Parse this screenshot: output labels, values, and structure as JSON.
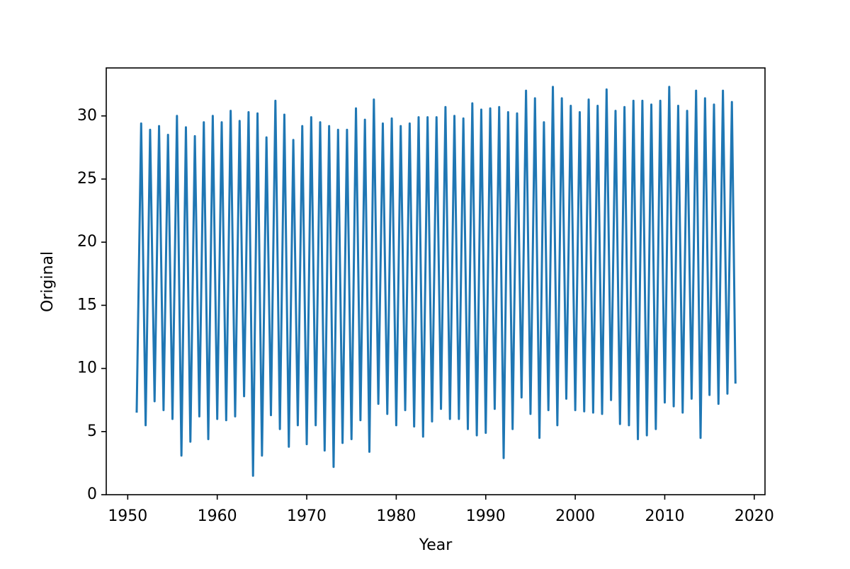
{
  "chart_data": {
    "type": "line",
    "xlabel": "Year",
    "ylabel": "Original",
    "xlim": [
      1947.6,
      2021.2
    ],
    "ylim": [
      0,
      33.8
    ],
    "xticks": [
      1950,
      1960,
      1970,
      1980,
      1990,
      2000,
      2010,
      2020
    ],
    "yticks": [
      0,
      5,
      10,
      15,
      20,
      25,
      30
    ],
    "grid": false,
    "series": [
      {
        "color": "#1f77b4",
        "x": [
          1951.0,
          1951.5,
          1952.0,
          1952.5,
          1953.0,
          1953.5,
          1954.0,
          1954.5,
          1955.0,
          1955.5,
          1956.0,
          1956.5,
          1957.0,
          1957.5,
          1958.0,
          1958.5,
          1959.0,
          1959.5,
          1960.0,
          1960.5,
          1961.0,
          1961.5,
          1962.0,
          1962.5,
          1963.0,
          1963.5,
          1964.0,
          1964.5,
          1965.0,
          1965.5,
          1966.0,
          1966.5,
          1967.0,
          1967.5,
          1968.0,
          1968.5,
          1969.0,
          1969.5,
          1970.0,
          1970.5,
          1971.0,
          1971.5,
          1972.0,
          1972.5,
          1973.0,
          1973.5,
          1974.0,
          1974.5,
          1975.0,
          1975.5,
          1976.0,
          1976.5,
          1977.0,
          1977.5,
          1978.0,
          1978.5,
          1979.0,
          1979.5,
          1980.0,
          1980.5,
          1981.0,
          1981.5,
          1982.0,
          1982.5,
          1983.0,
          1983.5,
          1984.0,
          1984.5,
          1985.0,
          1985.5,
          1986.0,
          1986.5,
          1987.0,
          1987.5,
          1988.0,
          1988.5,
          1989.0,
          1989.5,
          1990.0,
          1990.5,
          1991.0,
          1991.5,
          1992.0,
          1992.5,
          1993.0,
          1993.5,
          1994.0,
          1994.5,
          1995.0,
          1995.5,
          1996.0,
          1996.5,
          1997.0,
          1997.5,
          1998.0,
          1998.5,
          1999.0,
          1999.5,
          2000.0,
          2000.5,
          2001.0,
          2001.5,
          2002.0,
          2002.5,
          2003.0,
          2003.5,
          2004.0,
          2004.5,
          2005.0,
          2005.5,
          2006.0,
          2006.5,
          2007.0,
          2007.5,
          2008.0,
          2008.5,
          2009.0,
          2009.5,
          2010.0,
          2010.5,
          2011.0,
          2011.5,
          2012.0,
          2012.5,
          2013.0,
          2013.5,
          2014.0,
          2014.5,
          2015.0,
          2015.5,
          2016.0,
          2016.5,
          2017.0,
          2017.5,
          2017.9
        ],
        "values": [
          6.5,
          29.4,
          5.5,
          28.9,
          7.4,
          29.2,
          6.7,
          28.5,
          6.0,
          30.0,
          3.1,
          29.1,
          4.2,
          28.4,
          6.2,
          29.5,
          4.4,
          30.0,
          6.0,
          29.5,
          5.9,
          30.4,
          6.2,
          29.6,
          7.8,
          30.3,
          1.5,
          30.2,
          3.1,
          28.3,
          6.3,
          31.2,
          5.2,
          30.1,
          3.8,
          28.1,
          5.5,
          29.2,
          4.0,
          29.9,
          5.5,
          29.5,
          3.5,
          29.2,
          2.2,
          28.9,
          4.1,
          28.9,
          4.4,
          30.6,
          5.9,
          29.7,
          3.4,
          31.3,
          7.2,
          29.4,
          6.4,
          29.8,
          5.5,
          29.2,
          6.7,
          29.4,
          5.4,
          29.9,
          4.6,
          29.9,
          5.8,
          29.9,
          6.8,
          30.7,
          6.0,
          30.0,
          6.0,
          29.8,
          5.2,
          31.0,
          4.7,
          30.5,
          4.9,
          30.6,
          6.8,
          30.7,
          2.9,
          30.3,
          5.2,
          30.2,
          7.7,
          32.0,
          6.4,
          31.4,
          4.5,
          29.5,
          6.7,
          32.3,
          5.5,
          31.4,
          7.6,
          30.8,
          6.7,
          30.3,
          6.6,
          31.3,
          6.5,
          30.8,
          6.4,
          32.1,
          7.5,
          30.4,
          5.6,
          30.7,
          5.5,
          31.2,
          4.4,
          31.2,
          4.7,
          30.9,
          5.2,
          31.2,
          7.3,
          32.3,
          7.0,
          30.8,
          6.5,
          30.4,
          7.6,
          32.0,
          4.5,
          31.4,
          7.9,
          30.9,
          7.2,
          32.0,
          8.0,
          31.1,
          8.8
        ]
      }
    ]
  }
}
